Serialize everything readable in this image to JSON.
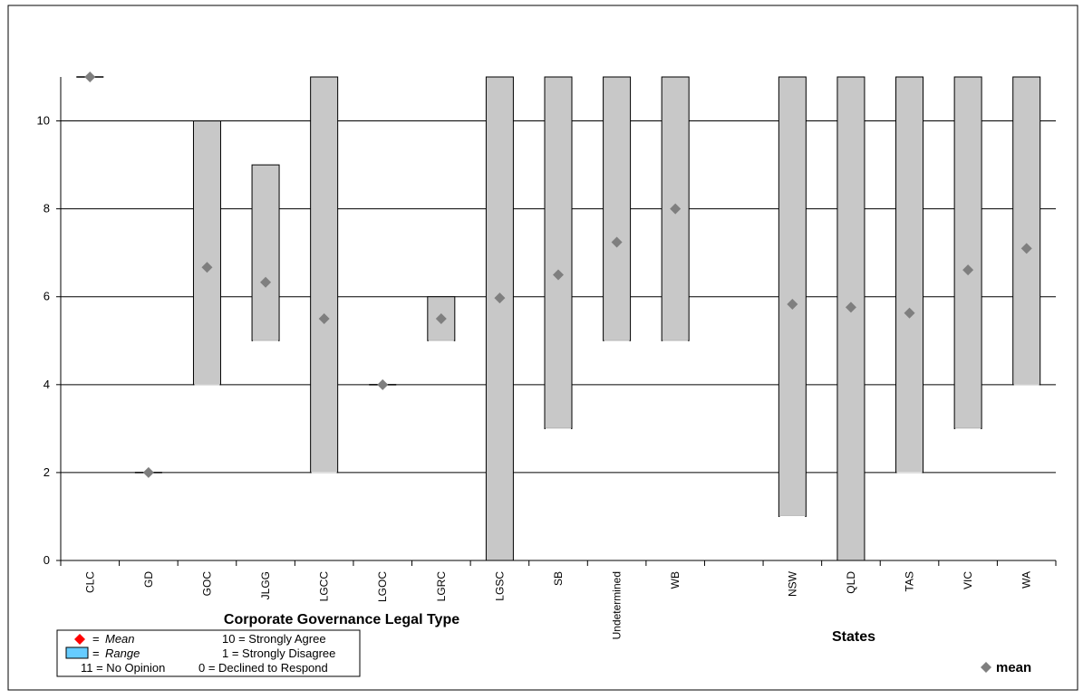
{
  "chart_data": {
    "type": "range",
    "ylim": [
      0,
      11
    ],
    "yticks": [
      0,
      2,
      4,
      6,
      8,
      10
    ],
    "grid": true,
    "categories": [
      "CLC",
      "GD",
      "GOC",
      "JLGG",
      "LGCC",
      "LGOC",
      "LGRC",
      "LGSC",
      "SB",
      "Undetermined",
      "WB",
      "",
      "NSW",
      "QLD",
      "TAS",
      "VIC",
      "WA"
    ],
    "ranges": [
      [
        11,
        11
      ],
      [
        2,
        2
      ],
      [
        4,
        10
      ],
      [
        5,
        9
      ],
      [
        2,
        11
      ],
      [
        4,
        4
      ],
      [
        5,
        6
      ],
      [
        0,
        11
      ],
      [
        3,
        11
      ],
      [
        5,
        11
      ],
      [
        5,
        11
      ],
      null,
      [
        1,
        11
      ],
      [
        0,
        11
      ],
      [
        2,
        11
      ],
      [
        3,
        11
      ],
      [
        4,
        11
      ]
    ],
    "means": [
      11,
      2,
      6.67,
      6.33,
      5.5,
      4,
      5.5,
      5.97,
      6.5,
      7.24,
      8,
      null,
      5.83,
      5.76,
      5.63,
      6.61,
      7.1
    ],
    "group_labels": {
      "left": "Corporate Governance Legal Type",
      "right": "States"
    },
    "series_legend": "mean",
    "colors": {
      "range_fill": "#c8c8c8",
      "mean_marker": "#7f7f7f",
      "legend_mean": "#ff0000",
      "legend_range": "#66ccff"
    }
  },
  "key": {
    "mean_eq": "=",
    "mean_label": "Mean",
    "range_eq": "=",
    "range_label": "Range",
    "strongly_agree": "10 = Strongly Agree",
    "strongly_disagree": "1 = Strongly Disagree",
    "no_opinion": "11 = No Opinion",
    "declined": "0 = Declined to Respond"
  }
}
